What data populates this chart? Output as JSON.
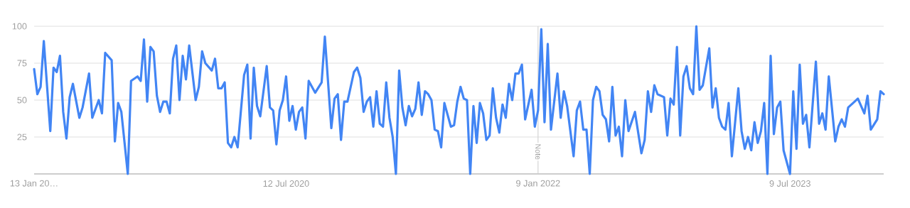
{
  "chart_data": {
    "type": "line",
    "color": "#4285f4",
    "grid": "y",
    "xlim": [
      "2019-01-13",
      "2024-01-28"
    ],
    "ylim": [
      0,
      100
    ],
    "xticks": [
      {
        "value": "2019-01-13",
        "label": "13 Jan 20…"
      },
      {
        "value": "2020-07-12",
        "label": "12 Jul 2020"
      },
      {
        "value": "2022-01-09",
        "label": "9 Jan 2022"
      },
      {
        "value": "2023-07-09",
        "label": "9 Jul 2023"
      }
    ],
    "yticks": [
      25,
      50,
      75,
      100
    ],
    "ref_lines": [
      {
        "axis": "x",
        "value": "2022-01-09",
        "label": "Note"
      }
    ],
    "x": [
      "2019-01-13",
      "2019-01-20",
      "2019-01-27",
      "2019-02-03",
      "2019-02-17",
      "2019-02-24",
      "2019-03-03",
      "2019-03-10",
      "2019-03-17",
      "2019-03-24",
      "2019-03-31",
      "2019-04-07",
      "2019-04-21",
      "2019-04-28",
      "2019-05-12",
      "2019-05-19",
      "2019-06-02",
      "2019-06-09",
      "2019-06-16",
      "2019-06-30",
      "2019-07-07",
      "2019-07-14",
      "2019-07-21",
      "2019-08-04",
      "2019-08-11",
      "2019-08-25",
      "2019-09-01",
      "2019-09-08",
      "2019-09-15",
      "2019-09-22",
      "2019-09-29",
      "2019-10-06",
      "2019-10-13",
      "2019-10-20",
      "2019-10-27",
      "2019-11-03",
      "2019-11-10",
      "2019-11-17",
      "2019-11-24",
      "2019-12-01",
      "2019-12-08",
      "2019-12-15",
      "2019-12-29",
      "2020-01-05",
      "2020-01-12",
      "2020-01-19",
      "2020-02-02",
      "2020-02-09",
      "2020-02-16",
      "2020-02-23",
      "2020-03-01",
      "2020-03-08",
      "2020-03-15",
      "2020-03-22",
      "2020-03-29",
      "2020-04-12",
      "2020-04-19",
      "2020-04-26",
      "2020-05-03",
      "2020-05-10",
      "2020-05-17",
      "2020-05-31",
      "2020-06-07",
      "2020-06-14",
      "2020-06-21",
      "2020-06-28",
      "2020-07-05",
      "2020-07-12",
      "2020-07-19",
      "2020-07-26",
      "2020-08-02",
      "2020-08-09",
      "2020-08-16",
      "2020-08-23",
      "2020-08-30",
      "2020-09-13",
      "2020-09-27",
      "2020-10-04",
      "2020-10-18",
      "2020-10-25",
      "2020-11-01",
      "2020-11-08",
      "2020-11-15",
      "2020-11-22",
      "2020-12-06",
      "2020-12-13",
      "2020-12-20",
      "2020-12-27",
      "2021-01-03",
      "2021-01-10",
      "2021-01-17",
      "2021-01-24",
      "2021-01-31",
      "2021-02-07",
      "2021-02-14",
      "2021-02-21",
      "2021-02-28",
      "2021-03-07",
      "2021-03-14",
      "2021-03-21",
      "2021-03-28",
      "2021-04-04",
      "2021-04-11",
      "2021-04-18",
      "2021-04-25",
      "2021-05-02",
      "2021-05-09",
      "2021-05-16",
      "2021-05-23",
      "2021-05-30",
      "2021-06-06",
      "2021-06-13",
      "2021-06-20",
      "2021-07-04",
      "2021-07-11",
      "2021-07-18",
      "2021-07-25",
      "2021-08-01",
      "2021-08-08",
      "2021-08-15",
      "2021-08-22",
      "2021-08-29",
      "2021-09-05",
      "2021-09-12",
      "2021-09-19",
      "2021-09-26",
      "2021-10-03",
      "2021-10-10",
      "2021-10-17",
      "2021-10-24",
      "2021-10-31",
      "2021-11-07",
      "2021-11-14",
      "2021-11-21",
      "2021-11-28",
      "2021-12-05",
      "2021-12-12",
      "2021-12-26",
      "2022-01-02",
      "2022-01-09",
      "2022-01-16",
      "2022-01-23",
      "2022-01-30",
      "2022-02-06",
      "2022-02-20",
      "2022-02-27",
      "2022-03-06",
      "2022-03-13",
      "2022-03-27",
      "2022-04-03",
      "2022-04-10",
      "2022-04-17",
      "2022-04-24",
      "2022-05-01",
      "2022-05-08",
      "2022-05-15",
      "2022-05-22",
      "2022-05-29",
      "2022-06-05",
      "2022-06-12",
      "2022-06-19",
      "2022-06-26",
      "2022-07-03",
      "2022-07-10",
      "2022-07-17",
      "2022-07-24",
      "2022-08-07",
      "2022-08-21",
      "2022-08-28",
      "2022-09-04",
      "2022-09-11",
      "2022-09-18",
      "2022-09-25",
      "2022-10-09",
      "2022-10-16",
      "2022-10-23",
      "2022-10-30",
      "2022-11-06",
      "2022-11-13",
      "2022-11-20",
      "2022-11-27",
      "2022-12-04",
      "2022-12-11",
      "2022-12-18",
      "2022-12-25",
      "2023-01-01",
      "2023-01-15",
      "2023-01-22",
      "2023-01-29",
      "2023-02-05",
      "2023-02-12",
      "2023-02-19",
      "2023-02-26",
      "2023-03-05",
      "2023-03-19",
      "2023-03-26",
      "2023-04-02",
      "2023-04-09",
      "2023-04-16",
      "2023-04-23",
      "2023-04-30",
      "2023-05-07",
      "2023-05-14",
      "2023-05-21",
      "2023-05-28",
      "2023-06-04",
      "2023-06-11",
      "2023-06-18",
      "2023-06-25",
      "2023-07-09",
      "2023-07-16",
      "2023-07-23",
      "2023-07-30",
      "2023-08-06",
      "2023-08-13",
      "2023-08-20",
      "2023-09-03",
      "2023-09-10",
      "2023-09-17",
      "2023-09-24",
      "2023-10-01",
      "2023-10-15",
      "2023-10-22",
      "2023-10-29",
      "2023-11-05",
      "2023-11-12",
      "2023-11-26",
      "2023-12-03",
      "2023-12-17",
      "2023-12-24",
      "2023-12-31",
      "2024-01-14",
      "2024-01-21",
      "2024-01-28"
    ],
    "values": [
      71,
      54,
      59,
      90,
      29,
      72,
      69,
      80,
      42,
      24,
      52,
      61,
      38,
      45,
      68,
      38,
      50,
      41,
      82,
      77,
      22,
      48,
      42,
      0,
      63,
      66,
      63,
      91,
      49,
      86,
      83,
      53,
      42,
      49,
      49,
      41,
      78,
      87,
      50,
      80,
      64,
      87,
      50,
      59,
      83,
      75,
      70,
      78,
      58,
      58,
      62,
      21,
      18,
      25,
      18,
      67,
      74,
      24,
      72,
      46,
      39,
      73,
      45,
      43,
      20,
      43,
      50,
      66,
      36,
      46,
      30,
      42,
      45,
      24,
      63,
      55,
      62,
      93,
      31,
      51,
      54,
      23,
      49,
      49,
      69,
      72,
      65,
      42,
      49,
      52,
      32,
      56,
      34,
      32,
      62,
      38,
      25,
      0,
      70,
      45,
      33,
      46,
      39,
      44,
      62,
      40,
      56,
      54,
      50,
      30,
      29,
      18,
      48,
      32,
      33,
      49,
      59,
      51,
      50,
      0,
      46,
      21,
      48,
      41,
      23,
      26,
      58,
      38,
      28,
      47,
      38,
      61,
      50,
      68,
      68,
      74,
      37,
      57,
      32,
      43,
      98,
      35,
      88,
      30,
      68,
      38,
      56,
      46,
      12,
      43,
      49,
      30,
      30,
      0,
      50,
      59,
      56,
      40,
      37,
      22,
      59,
      26,
      32,
      12,
      50,
      29,
      42,
      14,
      23,
      56,
      42,
      60,
      54,
      52,
      26,
      51,
      47,
      86,
      26,
      66,
      73,
      58,
      54,
      100,
      57,
      60,
      85,
      45,
      58,
      38,
      32,
      30,
      48,
      12,
      58,
      29,
      17,
      25,
      16,
      35,
      21,
      29,
      48,
      0,
      80,
      27,
      45,
      49,
      16,
      0,
      56,
      17,
      74,
      34,
      40,
      18,
      76,
      34,
      41,
      30,
      66,
      22,
      32,
      37,
      32,
      45,
      49,
      51,
      41,
      53,
      30,
      37,
      56,
      54
    ]
  }
}
